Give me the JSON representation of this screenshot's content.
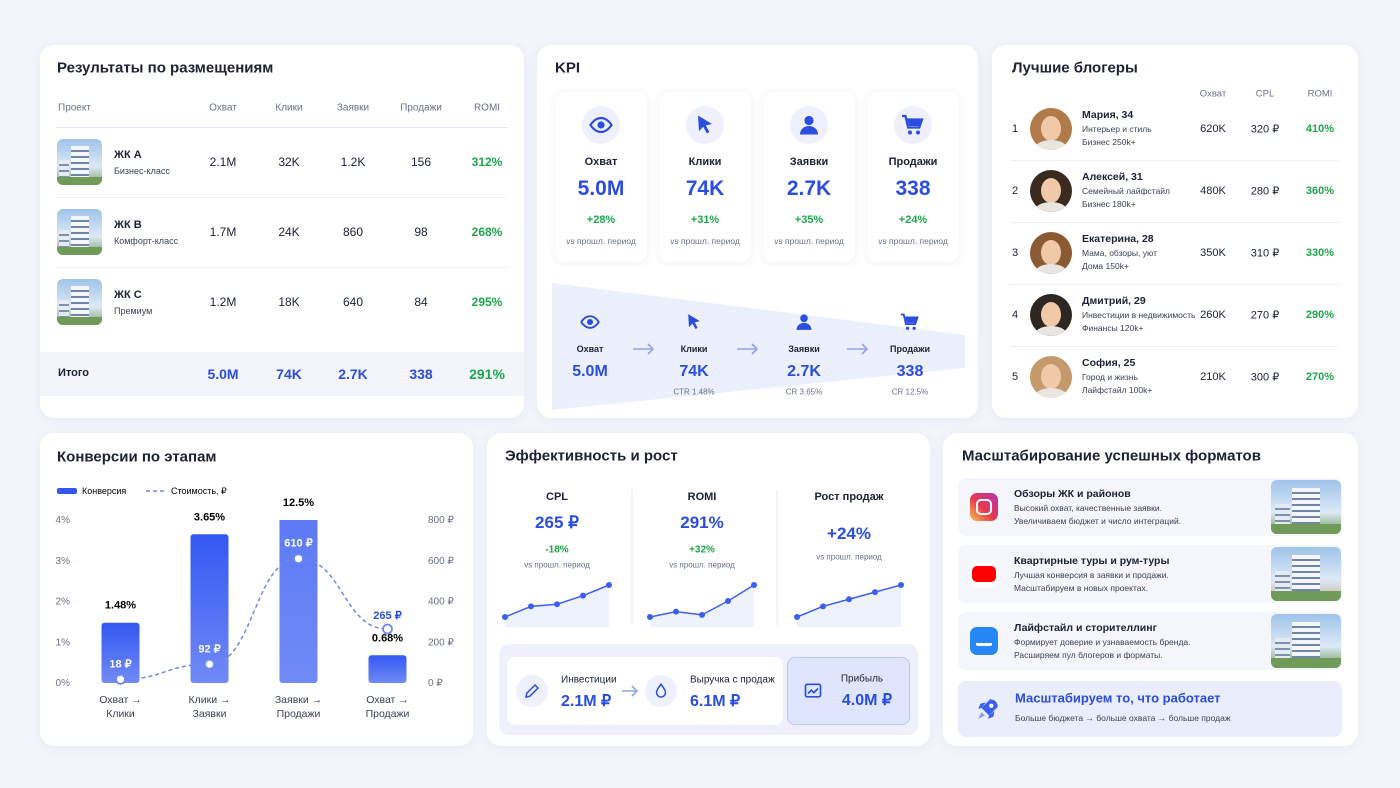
{
  "placements": {
    "title": "Результаты по размещениям",
    "columns": [
      "Проект",
      "Охват",
      "Клики",
      "Заявки",
      "Продажи",
      "ROMI"
    ],
    "rows": [
      {
        "name": "ЖК A",
        "class": "Бизнес-класс",
        "cells": [
          "2.1M",
          "32K",
          "1.2K",
          "156",
          "312%"
        ]
      },
      {
        "name": "ЖК B",
        "class": "Комфорт-класс",
        "cells": [
          "1.7M",
          "24K",
          "860",
          "98",
          "268%"
        ]
      },
      {
        "name": "ЖК C",
        "class": "Премиум",
        "cells": [
          "1.2M",
          "18K",
          "640",
          "84",
          "295%"
        ]
      }
    ],
    "total": {
      "label": "Итого",
      "cells": [
        "5.0M",
        "74K",
        "2.7K",
        "338",
        "291%"
      ]
    }
  },
  "kpi": {
    "title": "KPI",
    "cards": [
      {
        "label": "Охват",
        "value": "5.0M",
        "change": "+28%",
        "note": "vs прошл. период"
      },
      {
        "label": "Клики",
        "value": "74K",
        "change": "+31%",
        "note": "vs прошл. период"
      },
      {
        "label": "Заявки",
        "value": "2.7K",
        "change": "+35%",
        "note": "vs прошл. период"
      },
      {
        "label": "Продажи",
        "value": "338",
        "change": "+24%",
        "note": "vs прошл. период"
      }
    ],
    "funnel": [
      {
        "label": "Охват",
        "value": "5.0M"
      },
      {
        "label": "Клики",
        "value": "74K",
        "rate": "CTR 1.48%"
      },
      {
        "label": "Заявки",
        "value": "2.7K",
        "rate": "CR 3.65%"
      },
      {
        "label": "Продажи",
        "value": "338",
        "rate": "CR 12.5%"
      }
    ]
  },
  "bloggers": {
    "title": "Лучшие блогеры",
    "columns": [
      "Охват",
      "CPL",
      "ROMI"
    ],
    "rows": [
      {
        "rank": "1",
        "name": "Мария, 34",
        "topic": "Интерьер и стиль",
        "tier": "Бизнес 250k+",
        "reach": "620K",
        "cpl": "320 ₽",
        "romi": "410%"
      },
      {
        "rank": "2",
        "name": "Алексей, 31",
        "topic": "Семейный лайфстайл",
        "tier": "Бизнес 180k+",
        "reach": "480K",
        "cpl": "280 ₽",
        "romi": "360%"
      },
      {
        "rank": "3",
        "name": "Екатерина, 28",
        "topic": "Мама, обзоры, уют",
        "tier": "Дома 150k+",
        "reach": "350K",
        "cpl": "310 ₽",
        "romi": "330%"
      },
      {
        "rank": "4",
        "name": "Дмитрий, 29",
        "topic": "Инвестиции в недвижимость",
        "tier": "Финансы 120k+",
        "reach": "260K",
        "cpl": "270 ₽",
        "romi": "290%"
      },
      {
        "rank": "5",
        "name": "София, 25",
        "topic": "Город и жизнь",
        "tier": "Лайфстайл 100k+",
        "reach": "210K",
        "cpl": "300 ₽",
        "romi": "270%"
      }
    ]
  },
  "chart_data": {
    "type": "bar",
    "title": "Конверсии по этапам",
    "categories": [
      "Охват → Клики",
      "Клики → Заявки",
      "Заявки → Продажи",
      "Охват → Продажи"
    ],
    "series": [
      {
        "name": "Конверсия",
        "color": "#3358f2",
        "values": [
          1.48,
          3.65,
          12.5,
          0.68
        ],
        "value_labels": [
          "1.48%",
          "3.65%",
          "12.5%",
          "0.68%"
        ]
      },
      {
        "name": "Стоимость, ₽",
        "color": "#6f88ee",
        "axis": "y2",
        "values": [
          18,
          92,
          610,
          265
        ],
        "value_labels": [
          "18 ₽",
          "92 ₽",
          "610 ₽",
          "265 ₽"
        ]
      }
    ],
    "ylim": [
      0,
      4
    ],
    "yticks": [
      {
        "value": 0,
        "label": "0%"
      },
      {
        "value": 1,
        "label": "1%"
      },
      {
        "value": 2,
        "label": "2%"
      },
      {
        "value": 3,
        "label": "3%"
      },
      {
        "value": 4,
        "label": "4%"
      }
    ],
    "y2lim": [
      0,
      800
    ],
    "y2ticks": [
      {
        "value": 0,
        "label": "0 ₽"
      },
      {
        "value": 200,
        "label": "200 ₽"
      },
      {
        "value": 400,
        "label": "400 ₽"
      },
      {
        "value": 600,
        "label": "600 ₽"
      },
      {
        "value": 800,
        "label": "800 ₽"
      }
    ]
  },
  "efficiency": {
    "title": "Эффективность и рост",
    "metrics": [
      {
        "label": "CPL",
        "value": "265 ₽",
        "change": "-18%",
        "note": "vs прошл. период",
        "trend": [
          1,
          2,
          2.2,
          3,
          4
        ]
      },
      {
        "label": "ROMI",
        "value": "291%",
        "change": "+32%",
        "note": "vs прошл. период",
        "trend": [
          2,
          2.5,
          2.2,
          3.5,
          5
        ]
      },
      {
        "label": "Рост продаж",
        "value": "+24%",
        "note": "vs прошл. период",
        "trend": [
          1,
          2.5,
          3.5,
          4.5,
          5.5
        ]
      }
    ],
    "finance": [
      {
        "label": "Инвестиции",
        "value": "2.1M ₽"
      },
      {
        "label": "Выручка с продаж",
        "value": "6.1M ₽"
      },
      {
        "label": "Прибыль",
        "value": "4.0M ₽"
      }
    ]
  },
  "scaling": {
    "title": "Масштабирование успешных форматов",
    "formats": [
      {
        "title": "Обзоры ЖК и районов",
        "lines": [
          "Высокий охват, качественные заявки.",
          "Увеличиваем бюджет и число интеграций."
        ]
      },
      {
        "title": "Квартирные туры и рум-туры",
        "lines": [
          "Лучшая конверсия в заявки и продажи.",
          "Масштабируем в новых проектах."
        ]
      },
      {
        "title": "Лайфстайл и сторителлинг",
        "lines": [
          "Формирует доверие и узнаваемость бренда.",
          "Расширяем пул блогеров и форматы."
        ]
      }
    ],
    "cta": {
      "title": "Масштабируем то, что работает",
      "subtitle": "Больше бюджета → больше охвата → больше продаж"
    }
  }
}
